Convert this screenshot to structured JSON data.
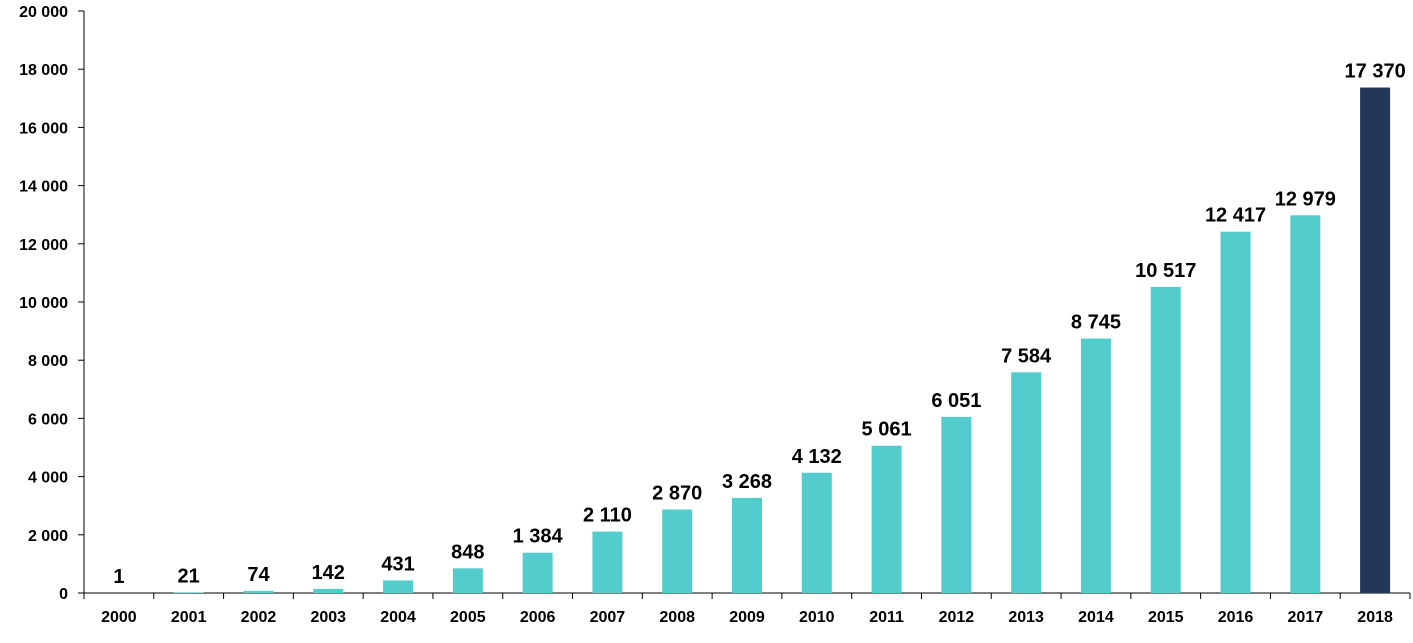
{
  "chart_data": {
    "type": "bar",
    "title": "",
    "xlabel": "",
    "ylabel": "",
    "categories": [
      "2000",
      "2001",
      "2002",
      "2003",
      "2004",
      "2005",
      "2006",
      "2007",
      "2008",
      "2009",
      "2010",
      "2011",
      "2012",
      "2013",
      "2014",
      "2015",
      "2016",
      "2017",
      "2018"
    ],
    "values": [
      1,
      21,
      74,
      142,
      431,
      848,
      1384,
      2110,
      2870,
      3268,
      4132,
      5061,
      6051,
      7584,
      8745,
      10517,
      12417,
      12979,
      17370
    ],
    "value_labels": [
      "1",
      "21",
      "74",
      "142",
      "431",
      "848",
      "1 384",
      "2 110",
      "2 870",
      "3 268",
      "4 132",
      "5 061",
      "6 051",
      "7 584",
      "8 745",
      "10 517",
      "12 417",
      "12 979",
      "17 370"
    ],
    "ylim": [
      0,
      20000
    ],
    "yticks": [
      0,
      2000,
      4000,
      6000,
      8000,
      10000,
      12000,
      14000,
      16000,
      18000,
      20000
    ],
    "ytick_labels": [
      "0",
      "2 000",
      "4 000",
      "6 000",
      "8 000",
      "10 000",
      "12 000",
      "14 000",
      "16 000",
      "18 000",
      "20 000"
    ],
    "grid": false,
    "legend": "none",
    "colors": {
      "bar": "#52cccc",
      "highlight_bar": "#22375a",
      "axis": "#000000"
    },
    "highlight_index": 18
  }
}
